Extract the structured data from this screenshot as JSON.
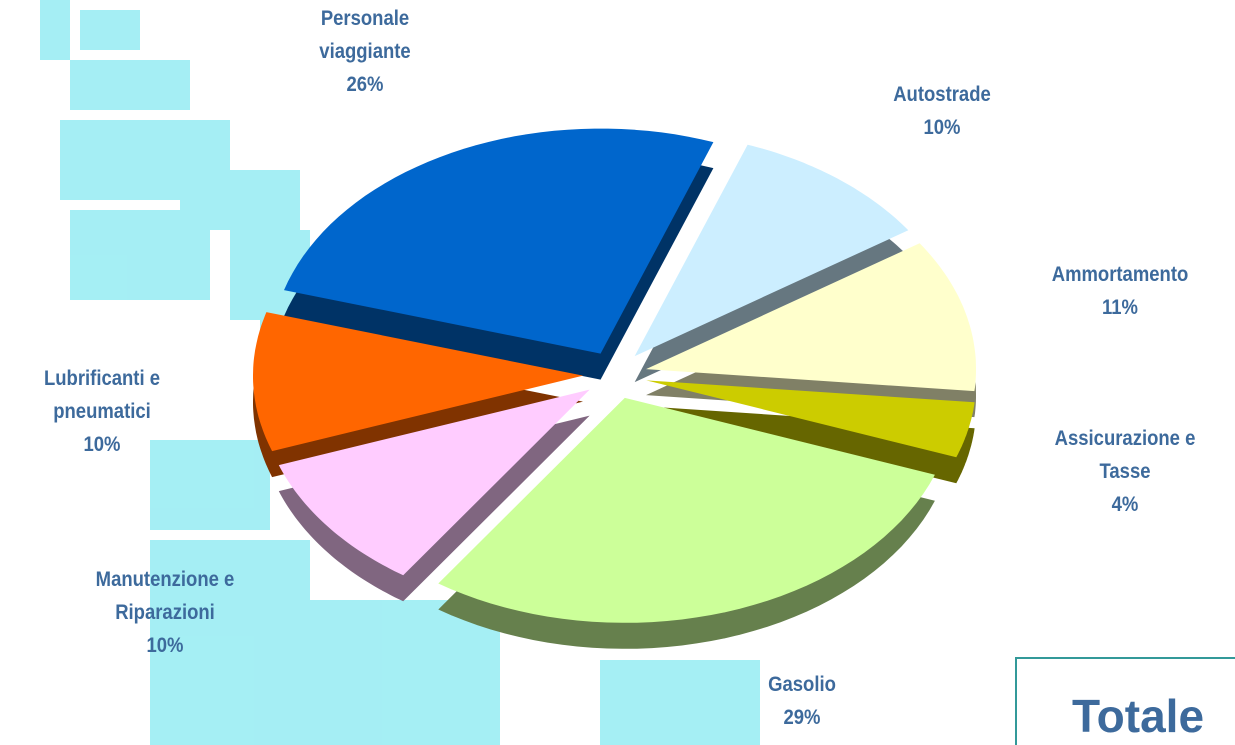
{
  "chart_data": {
    "type": "pie",
    "categories": [
      "Autostrade",
      "Ammortamento",
      "Assicurazione e Tasse",
      "Gasolio",
      "Manutenzione e Riparazioni",
      "Lubrificanti e pneumatici",
      "Personale viaggiante"
    ],
    "values": [
      10,
      11,
      4,
      29,
      10,
      10,
      26
    ],
    "value_labels": [
      "10%",
      "11%",
      "4%",
      "29%",
      "10%",
      "10%",
      "26%"
    ],
    "colors": [
      "#cceeff",
      "#ffffcc",
      "#cccc00",
      "#ccff99",
      "#ffccff",
      "#ff6600",
      "#0066cc"
    ],
    "annotation": "Totale"
  }
}
